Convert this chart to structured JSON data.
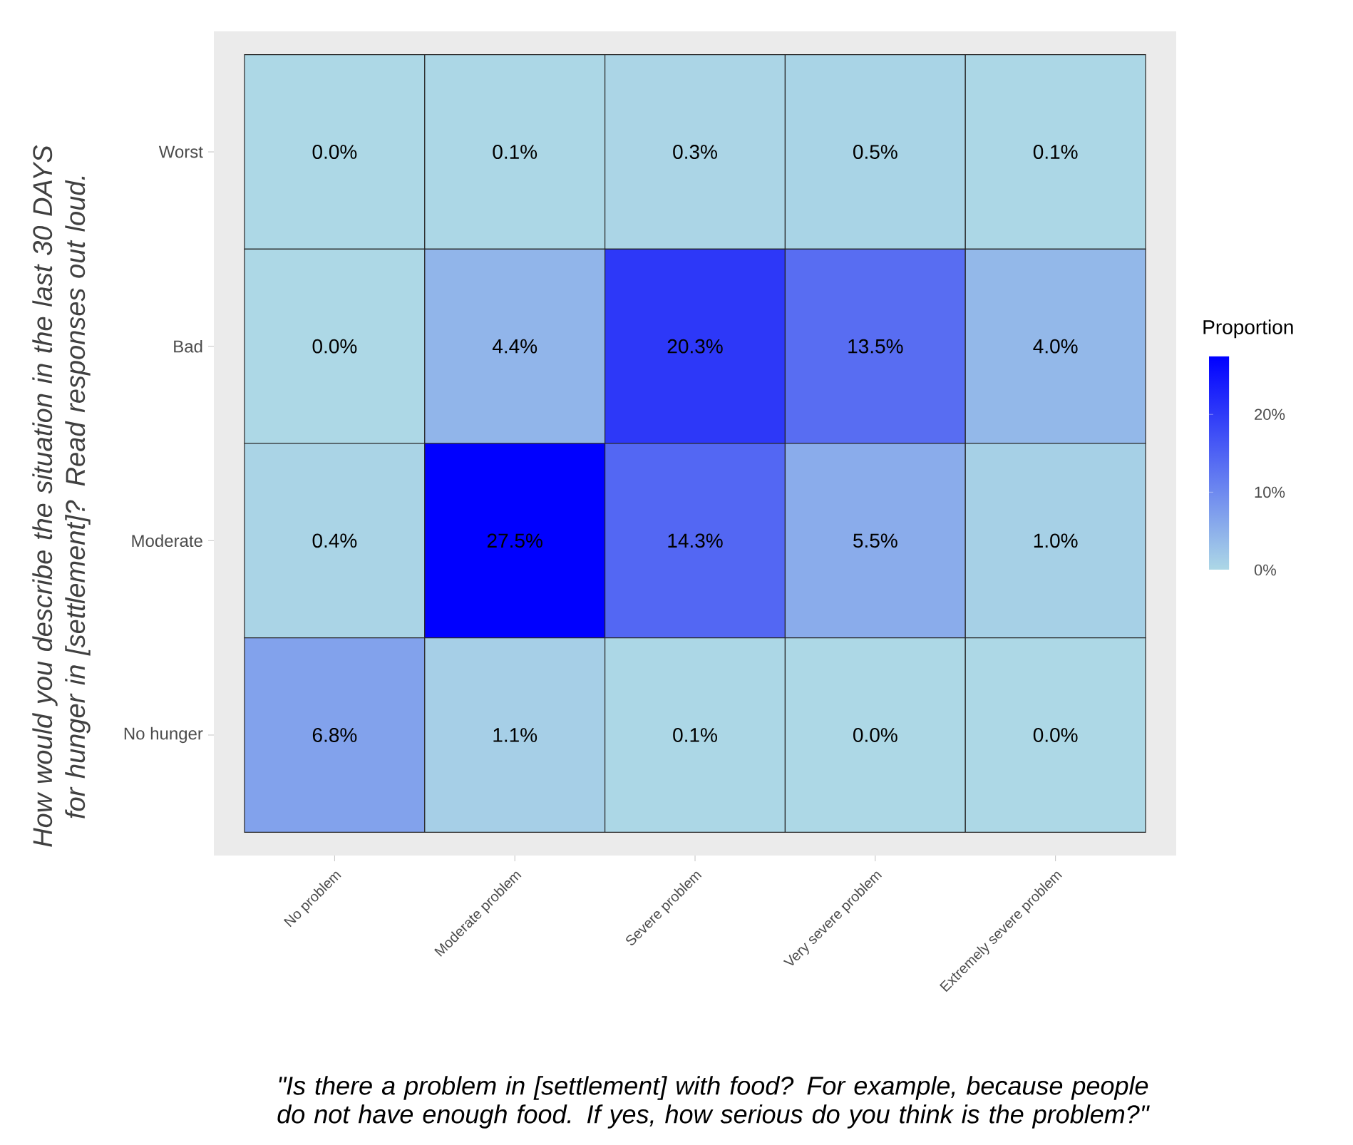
{
  "chart_data": {
    "type": "heatmap",
    "xlabel": "\"Is there a problem in [settlement] with food? For example, because people do not have enough food. If yes, how serious do you think is the problem?\"",
    "ylabel": "How would you describe the situation in the last 30 DAYS for hunger in [settlement]? Read responses out loud.",
    "clabel": "Proportion",
    "categories": [
      "No problem",
      "Moderate problem",
      "Severe problem",
      "Very severe problem",
      "Extremely severe problem"
    ],
    "y_categories": [
      "Worst",
      "Bad",
      "Moderate",
      "No hunger"
    ],
    "cells": [
      [
        0.0,
        0.1,
        0.3,
        0.5,
        0.1
      ],
      [
        0.0,
        4.4,
        20.3,
        13.5,
        4.0
      ],
      [
        0.4,
        27.5,
        14.3,
        5.5,
        1.0
      ],
      [
        6.8,
        1.1,
        0.1,
        0.0,
        0.0
      ]
    ],
    "cell_labels": [
      [
        "0.0%",
        "0.1%",
        "0.3%",
        "0.5%",
        "0.1%"
      ],
      [
        "0.0%",
        "4.4%",
        "20.3%",
        "13.5%",
        "4.0%"
      ],
      [
        "0.4%",
        "27.5%",
        "14.3%",
        "5.5%",
        "1.0%"
      ],
      [
        "6.8%",
        "1.1%",
        "0.1%",
        "0.0%",
        "0.0%"
      ]
    ],
    "clim": [
      0,
      27.5
    ],
    "cticks": [
      {
        "value": 0,
        "label": "0%"
      },
      {
        "value": 10,
        "label": "10%"
      },
      {
        "value": 20,
        "label": "20%"
      }
    ]
  }
}
